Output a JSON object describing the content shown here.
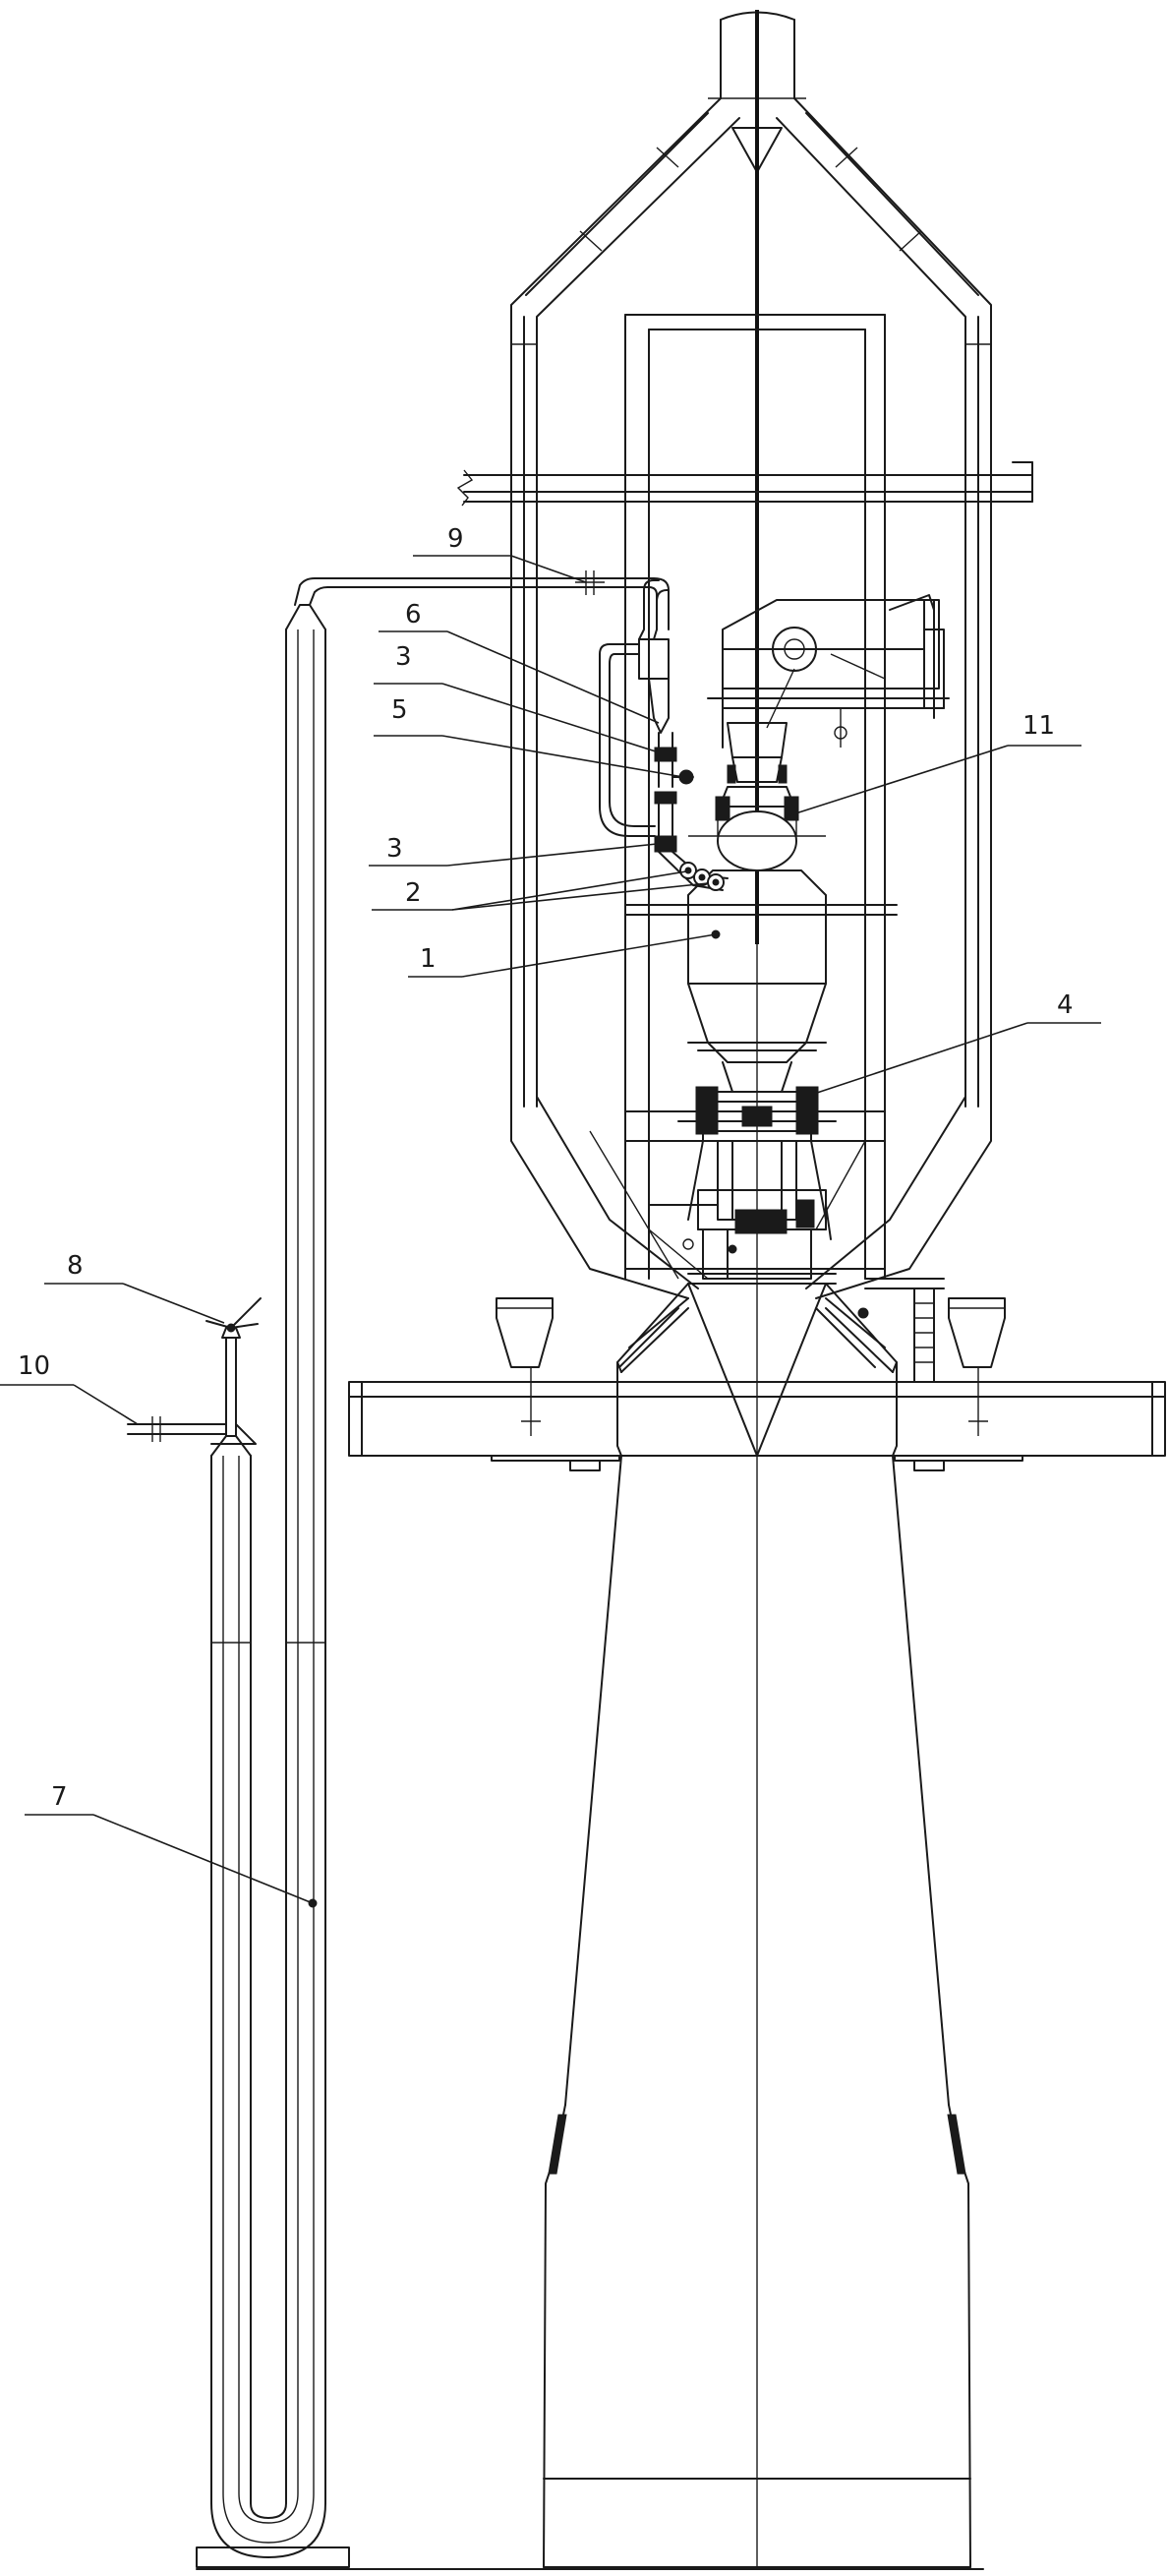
{
  "labels": [
    {
      "id": "1",
      "text": "1"
    },
    {
      "id": "2",
      "text": "2"
    },
    {
      "id": "3a",
      "text": "3"
    },
    {
      "id": "3b",
      "text": "3"
    },
    {
      "id": "4",
      "text": "4"
    },
    {
      "id": "5",
      "text": "5"
    },
    {
      "id": "6",
      "text": "6"
    },
    {
      "id": "7",
      "text": "7"
    },
    {
      "id": "8",
      "text": "8"
    },
    {
      "id": "9",
      "text": "9"
    },
    {
      "id": "10",
      "text": "10"
    },
    {
      "id": "11",
      "text": "11"
    }
  ]
}
